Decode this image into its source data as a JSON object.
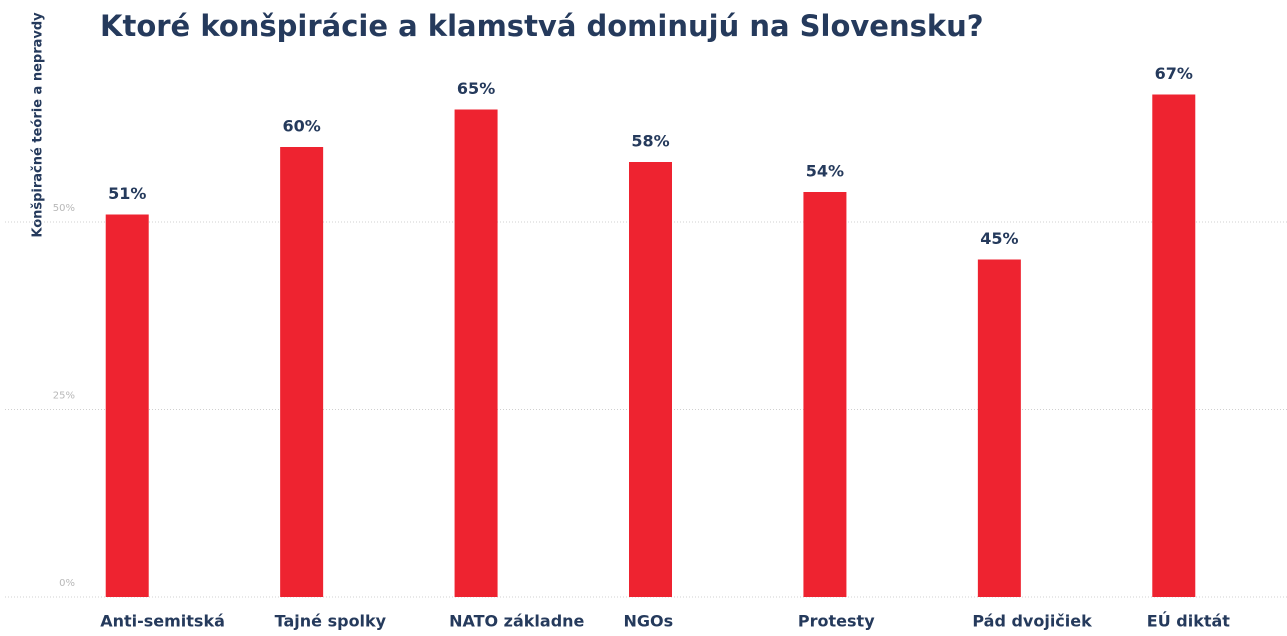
{
  "chart_data": {
    "type": "bar",
    "title": "Ktoré konšpirácie a klamstvá dominujú na Slovensku?",
    "y_label": "Konšpiračné teórie a nepravdy",
    "categories": [
      "Anti-semitská",
      "Tajné spolky",
      "NATO základne",
      "NGOs",
      "Protesty",
      "Pád dvojičiek",
      "EÚ diktát"
    ],
    "values": [
      51,
      60,
      65,
      58,
      54,
      45,
      67
    ],
    "value_labels": [
      "51%",
      "60%",
      "65%",
      "58%",
      "54%",
      "45%",
      "67%"
    ],
    "color": "#ee2330",
    "ylim": [
      0,
      75
    ],
    "yticks": [
      {
        "value": 0,
        "label": "0%"
      },
      {
        "value": 25,
        "label": "25%"
      },
      {
        "value": 50,
        "label": "50%"
      }
    ],
    "grid": true
  }
}
